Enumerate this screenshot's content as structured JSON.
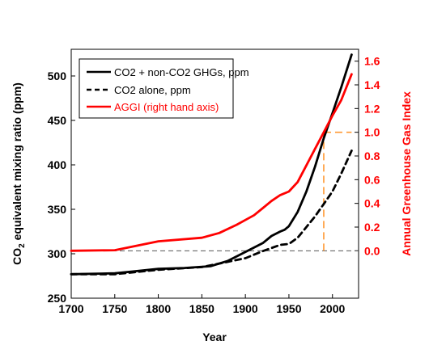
{
  "chart_data": {
    "type": "line",
    "xlabel": "Year",
    "ylabel_left_main": "CO",
    "ylabel_left_sub": "2",
    "ylabel_left_rest": " equivalent mixing ratio (ppm)",
    "ylabel_right": "Annual Greenhouse Gas Index",
    "xlim": [
      1700,
      2030
    ],
    "ylim_left": [
      250,
      530
    ],
    "ylim_right": [
      -0.4,
      1.7
    ],
    "x_ticks": [
      "1700",
      "1750",
      "1800",
      "1850",
      "1900",
      "1950",
      "2000"
    ],
    "y_left_ticks": [
      "250",
      "300",
      "350",
      "400",
      "450",
      "500"
    ],
    "y_right_ticks": [
      "0.0",
      "0.2",
      "0.4",
      "0.6",
      "0.8",
      "1.0",
      "1.2",
      "1.4",
      "1.6"
    ],
    "legend_position": "top-left",
    "series": [
      {
        "name": "CO2 + non-CO2 GHGs, ppm",
        "axis": "left",
        "style": "solid",
        "color": "#000000",
        "x": [
          1700,
          1750,
          1770,
          1800,
          1830,
          1860,
          1880,
          1900,
          1920,
          1930,
          1940,
          1945,
          1950,
          1960,
          1970,
          1980,
          1990,
          2000,
          2010,
          2022
        ],
        "y": [
          277,
          278,
          280,
          283,
          284,
          286,
          292,
          302,
          312,
          320,
          325,
          327,
          331,
          347,
          370,
          398,
          430,
          458,
          487,
          524
        ]
      },
      {
        "name": "CO2 alone, ppm",
        "axis": "left",
        "style": "dashed",
        "color": "#000000",
        "x": [
          1700,
          1750,
          1800,
          1850,
          1870,
          1900,
          1920,
          1940,
          1950,
          1960,
          1970,
          1980,
          1990,
          2000,
          2010,
          2022
        ],
        "y": [
          277,
          277,
          282,
          285,
          289,
          295,
          303,
          310,
          311,
          318,
          330,
          342,
          356,
          370,
          390,
          416
        ]
      },
      {
        "name": "AGGI (right hand axis)",
        "axis": "right",
        "style": "solid",
        "color": "#ff0000",
        "x": [
          1700,
          1750,
          1800,
          1850,
          1870,
          1890,
          1900,
          1910,
          1920,
          1930,
          1940,
          1950,
          1960,
          1970,
          1980,
          1990,
          2000,
          2010,
          2022
        ],
        "y": [
          0.0,
          0.005,
          0.08,
          0.11,
          0.15,
          0.22,
          0.26,
          0.3,
          0.36,
          0.42,
          0.47,
          0.5,
          0.58,
          0.72,
          0.86,
          1.0,
          1.14,
          1.27,
          1.49
        ]
      }
    ],
    "reference_lines": [
      {
        "kind": "horizontal",
        "axis": "right",
        "value": 0.0,
        "style": "dashed",
        "color": "#555555"
      },
      {
        "kind": "horizontal",
        "axis": "right",
        "value": 1.0,
        "x_from": 1990,
        "x_to": 2022,
        "style": "dashed",
        "color": "#ff9933"
      },
      {
        "kind": "vertical",
        "x": 1990,
        "y_from": 0.0,
        "y_to": 1.0,
        "style": "dashed",
        "color": "#ff9933"
      }
    ]
  }
}
